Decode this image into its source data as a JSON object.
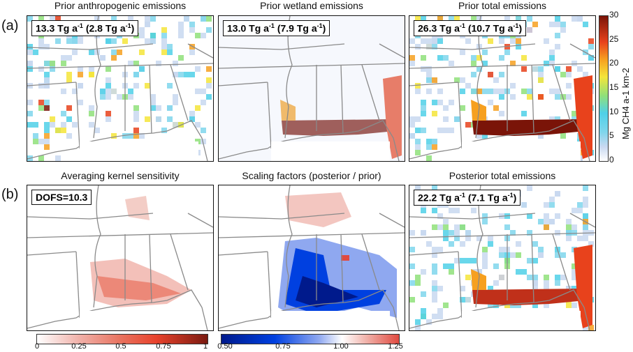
{
  "row_labels": [
    "(a)",
    "(b)"
  ],
  "panels": [
    {
      "title": "Prior anthropogenic emissions",
      "tag_main": "13.3 Tg a",
      "tag_paren": "(2.8 Tg a",
      "sup": "-1"
    },
    {
      "title": "Prior wetland emissions",
      "tag_main": "13.0 Tg a",
      "tag_paren": "(7.9 Tg a",
      "sup": "-1"
    },
    {
      "title": "Prior total emissions",
      "tag_main": "26.3 Tg a",
      "tag_paren": "(10.7 Tg a",
      "sup": "-1"
    },
    {
      "title": "Averaging kernel sensitivity",
      "tag_text": "DOFS=10.3"
    },
    {
      "title": "Scaling factors (posterior / prior)"
    },
    {
      "title": "Posterior total emissions",
      "tag_main": "22.2 Tg a",
      "tag_paren": "(7.1 Tg a",
      "sup": "-1"
    }
  ],
  "colorbar_emissions": {
    "ticks": [
      "30",
      "25",
      "20",
      "15",
      "10",
      "5",
      "0"
    ],
    "label": "Mg CH4 a-1 km-2",
    "colors": [
      "#ffffff",
      "#4fd0e8",
      "#f4e53a",
      "#7a1408"
    ]
  },
  "colorbar_ak": {
    "ticks": [
      "0",
      "0.25",
      "0.5",
      "0.75",
      "1"
    ],
    "colors": [
      "#ffffff",
      "#e8422c",
      "#7a1a10"
    ]
  },
  "colorbar_sf": {
    "ticks": [
      "0.50",
      "0.75",
      "1.00",
      "1.25"
    ],
    "colors": [
      "#001a8c",
      "#0040e0",
      "#ffffff",
      "#e04a40"
    ]
  }
}
